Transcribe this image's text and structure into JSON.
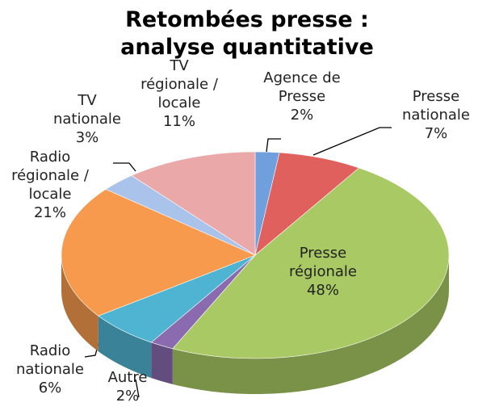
{
  "chart_data": {
    "type": "pie",
    "title": "Retombées presse : analyse quantitative",
    "categories": [
      "Agence de Presse",
      "Presse nationale",
      "Presse régionale",
      "Autre",
      "Radio nationale",
      "Radio régionale / locale",
      "TV nationale",
      "TV régionale / locale"
    ],
    "values": [
      2,
      7,
      48,
      2,
      6,
      21,
      3,
      11
    ],
    "value_labels": [
      "2%",
      "7%",
      "48%",
      "2%",
      "6%",
      "21%",
      "3%",
      "11%"
    ],
    "colors": [
      "#6f9fdc",
      "#e0605e",
      "#a9c964",
      "#8a6bb0",
      "#4fb4d2",
      "#f79a4e",
      "#a9c3ea",
      "#eba8a8"
    ]
  }
}
